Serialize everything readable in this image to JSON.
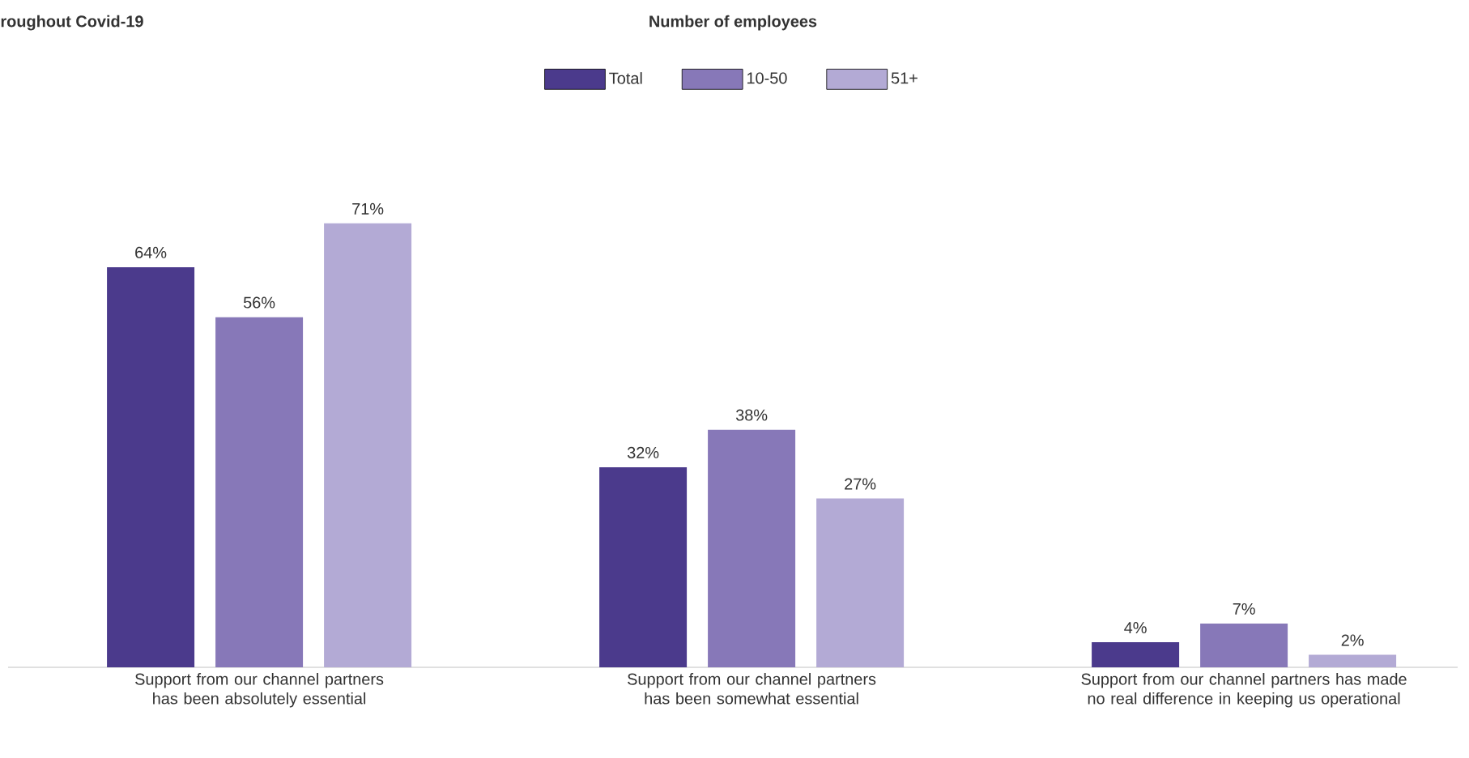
{
  "chart_data": {
    "type": "bar",
    "title": "roughout Covid-19",
    "legend_title": "Number of employees",
    "legend": "top",
    "data_labels": true,
    "categories": [
      "Support from our channel partners has been absolutely essential",
      "Support from our channel partners has been somewhat essential",
      "Support from our channel partners has made no real difference in keeping us operational"
    ],
    "series": [
      {
        "name": "Total",
        "color": "#4b3a8c",
        "values": [
          64,
          32,
          4
        ],
        "value_labels": [
          "64%",
          "32%",
          "4%"
        ]
      },
      {
        "name": "10-50",
        "color": "#8778b8",
        "values": [
          56,
          38,
          7
        ],
        "value_labels": [
          "56%",
          "38%",
          "7%"
        ]
      },
      {
        "name": "51+",
        "color": "#b3aad5",
        "values": [
          71,
          27,
          2
        ],
        "value_labels": [
          "71%",
          "27%",
          "2%"
        ]
      }
    ]
  }
}
